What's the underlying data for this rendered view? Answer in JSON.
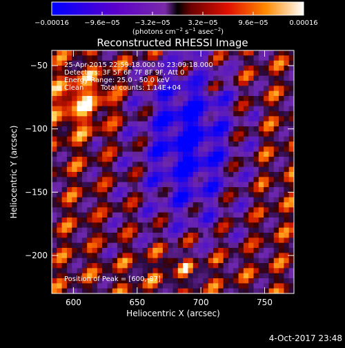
{
  "chart_data": {
    "type": "heatmap",
    "title": "Reconstructed RHESSI Image",
    "xlabel": "Heliocentric X (arcsec)",
    "ylabel": "Heliocentric Y (arcsec)",
    "xlim": [
      583,
      773
    ],
    "ylim": [
      -230,
      -38
    ],
    "x_ticks": [
      {
        "value": 600,
        "label": "600"
      },
      {
        "value": 650,
        "label": "650"
      },
      {
        "value": 700,
        "label": "700"
      },
      {
        "value": 750,
        "label": "750"
      }
    ],
    "y_ticks": [
      {
        "value": -50,
        "label": "−50"
      },
      {
        "value": -100,
        "label": "−100"
      },
      {
        "value": -150,
        "label": "−150"
      },
      {
        "value": -200,
        "label": "−200"
      }
    ],
    "colorbar": {
      "min": -0.00016,
      "max": 0.00016,
      "ticks": [
        {
          "value": -0.00016,
          "label": "−0.00016"
        },
        {
          "value": -9.6e-05,
          "label": "−9.6e−05"
        },
        {
          "value": -3.2e-05,
          "label": "−3.2e−05"
        },
        {
          "value": 3.2e-05,
          "label": "3.2e−05"
        },
        {
          "value": 9.6e-05,
          "label": "9.6e−05"
        },
        {
          "value": 0.00016,
          "label": "0.00016"
        }
      ],
      "units_prefix": "(photons cm",
      "units_exp1": "−2",
      "units_mid1": " s",
      "units_exp2": "−1",
      "units_mid2": " asec",
      "units_exp3": "−2",
      "units_suffix": ")"
    },
    "annotations": {
      "time_range": "25-Apr-2015 22:59:18.000 to 23:09:18.000",
      "detectors": "Detectors: 3F 5F 6F 7F 8F 9F, Att 0",
      "energy": "Energy Range: 25.0 - 50.0 keV",
      "method": "Clean",
      "counts": "Total counts: 1.14E+04",
      "peak": "Position of Peak = [600,-87]"
    },
    "peak": [
      600,
      -87
    ],
    "timestamp": "4-Oct-2017 23:48",
    "colors": {
      "background": "#000000",
      "foreground": "#ffffff"
    }
  }
}
